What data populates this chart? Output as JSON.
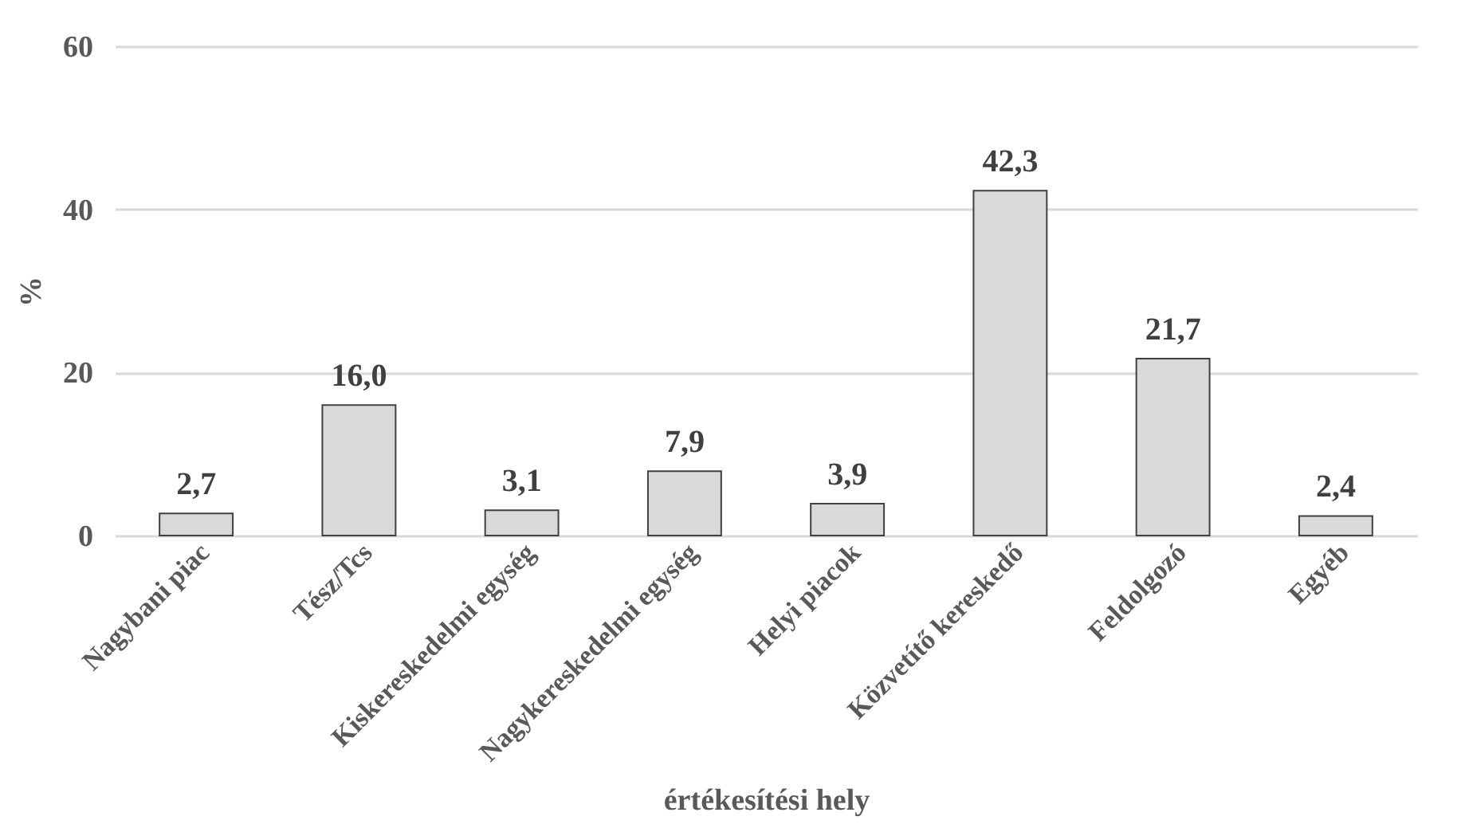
{
  "chart_data": {
    "type": "bar",
    "xlabel": "értékesítési hely",
    "ylabel": "%",
    "categories": [
      "Nagybani piac",
      "Tész/Tcs",
      "Kiskereskedelmi egység",
      "Nagykereskedelmi egység",
      "Helyi piacok",
      "Közvetítő kereskedő",
      "Feldolgozó",
      "Egyéb"
    ],
    "values": [
      2.7,
      16.0,
      3.1,
      7.9,
      3.9,
      42.3,
      21.7,
      2.4
    ],
    "value_labels": [
      "2,7",
      "16,0",
      "3,1",
      "7,9",
      "3,9",
      "42,3",
      "21,7",
      "2,4"
    ],
    "color": "#d9d9d9",
    "ylim": [
      0,
      60
    ],
    "yticks": [
      0,
      20,
      40,
      60
    ],
    "grid": "y"
  }
}
